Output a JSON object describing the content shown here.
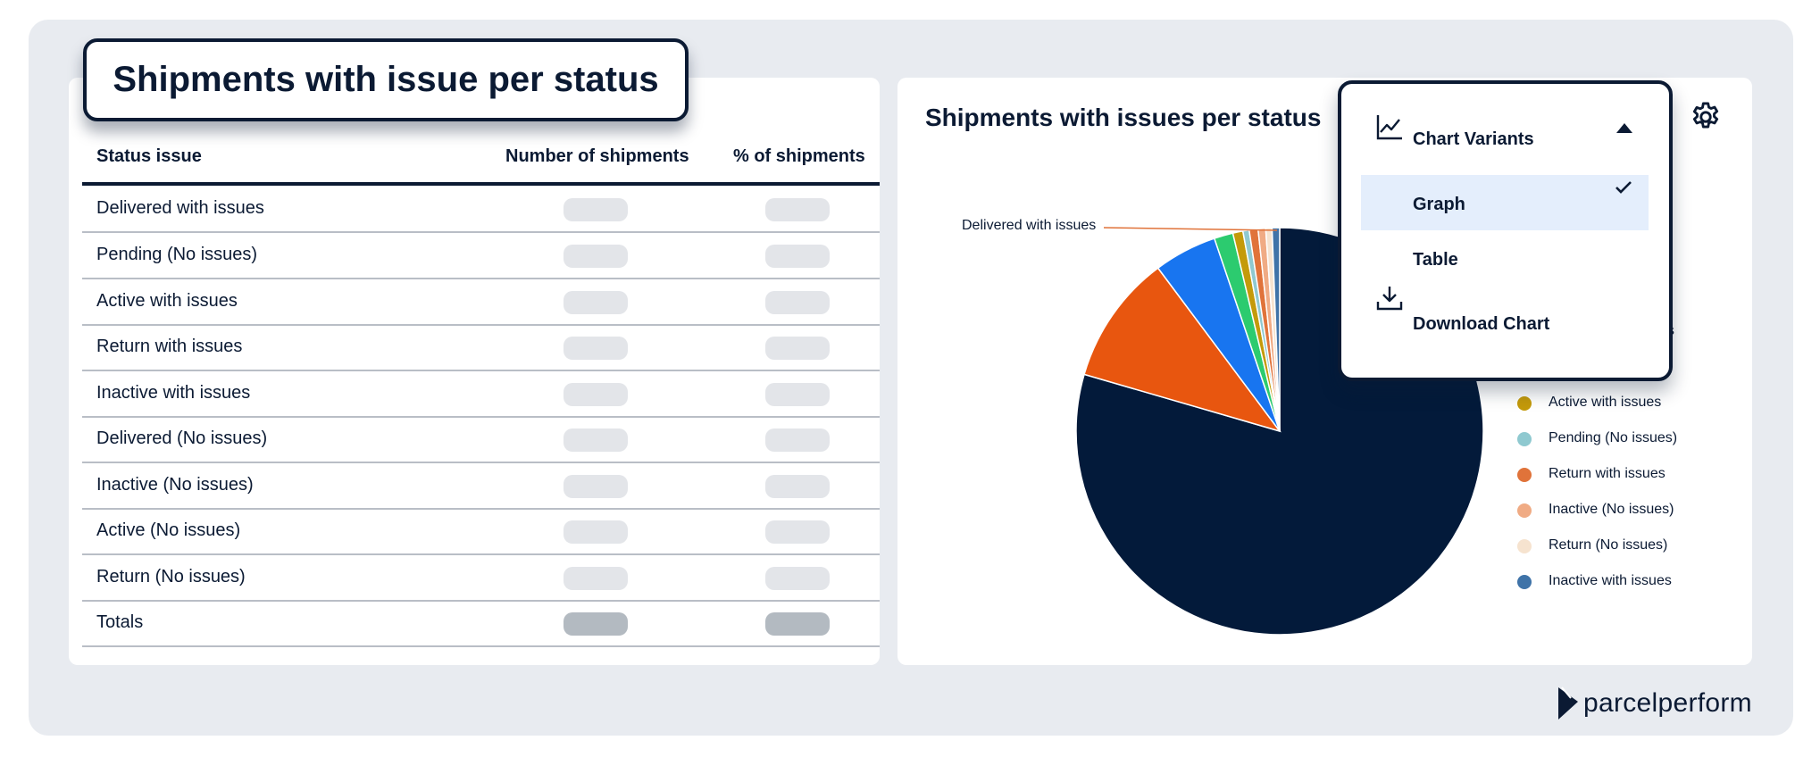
{
  "table_section": {
    "title": "Shipments with issue per status",
    "headers": {
      "status": "Status issue",
      "number": "Number of shipments",
      "percent": "% of shipments"
    },
    "rows": [
      "Delivered with issues",
      "Pending (No issues)",
      "Active with issues",
      "Return with issues",
      "Inactive with issues",
      "Delivered (No issues)",
      "Inactive (No issues)",
      "Active (No issues)",
      "Return (No issues)"
    ],
    "total_label": "Totals"
  },
  "chart_section": {
    "title": "Shipments with issues per status",
    "pie_callout": "Delivered with issues",
    "legend": [
      {
        "label": "Active with issues",
        "color": "#c49a0a"
      },
      {
        "label": "Pending (No issues)",
        "color": "#8fc9d0"
      },
      {
        "label": "Return with issues",
        "color": "#e0733a"
      },
      {
        "label": "Inactive (No issues)",
        "color": "#f0ab84"
      },
      {
        "label": "Return (No issues)",
        "color": "#f6e3cf"
      },
      {
        "label": "Inactive with issues",
        "color": "#3f73a8"
      }
    ],
    "legend_obscured_fragments": [
      "s)",
      "es"
    ],
    "settings_icon": "gear-icon"
  },
  "chart_data": {
    "type": "pie",
    "title": "Shipments with issues per status",
    "slices": [
      {
        "label": "Delivered with issues",
        "value": 79.5,
        "color": "#031a3a"
      },
      {
        "label": "",
        "value": 10.3,
        "color": "#e8560f"
      },
      {
        "label": "",
        "value": 5.0,
        "color": "#1875f0"
      },
      {
        "label": "",
        "value": 1.5,
        "color": "#2ccb6f"
      },
      {
        "label": "Active with issues",
        "value": 0.8,
        "color": "#c49a0a"
      },
      {
        "label": "Pending (No issues)",
        "value": 0.5,
        "color": "#8fc9d0"
      },
      {
        "label": "Return with issues",
        "value": 0.7,
        "color": "#e0733a"
      },
      {
        "label": "Inactive (No issues)",
        "value": 0.6,
        "color": "#f0ab84"
      },
      {
        "label": "Return (No issues)",
        "value": 0.5,
        "color": "#f6e3cf"
      },
      {
        "label": "Inactive with issues",
        "value": 0.6,
        "color": "#3f73a8"
      }
    ]
  },
  "dropdown": {
    "header": "Chart Variants",
    "items": [
      {
        "label": "Graph",
        "selected": true
      },
      {
        "label": "Table",
        "selected": false
      }
    ],
    "download_label": "Download Chart"
  },
  "brand": {
    "name": "parcelperform",
    "color": "#0b1a33"
  }
}
